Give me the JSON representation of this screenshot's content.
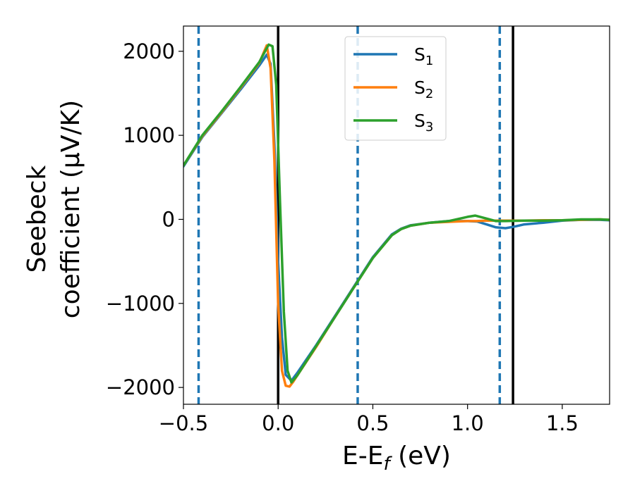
{
  "chart_data": {
    "type": "line",
    "xlabel": {
      "main": "E-E",
      "sub": "f",
      "unit": " (eV)"
    },
    "ylabel": {
      "line1": "Seebeck",
      "line2": "coefficient  (μV/K)"
    },
    "xlim": [
      -0.5,
      1.75
    ],
    "ylim": [
      -2200,
      2300
    ],
    "xticks": [
      {
        "value": -0.5,
        "label": "−0.5"
      },
      {
        "value": 0.0,
        "label": "0.0"
      },
      {
        "value": 0.5,
        "label": "0.5"
      },
      {
        "value": 1.0,
        "label": "1.0"
      },
      {
        "value": 1.5,
        "label": "1.5"
      }
    ],
    "yticks": [
      {
        "value": 2000,
        "label": "2000"
      },
      {
        "value": 1000,
        "label": "1000"
      },
      {
        "value": 0,
        "label": "0"
      },
      {
        "value": -1000,
        "label": "−1000"
      },
      {
        "value": -2000,
        "label": "−2000"
      }
    ],
    "grid": false,
    "legend_position": "top-center",
    "vlines_dashed": {
      "color": "#1f77b4",
      "x": [
        -0.42,
        0.42,
        1.17
      ]
    },
    "vlines_solid": {
      "color": "#000000",
      "x": [
        0.0,
        1.24
      ]
    },
    "series": [
      {
        "name": "S",
        "sub": "1",
        "color": "#1f77b4",
        "x": [
          -0.5,
          -0.4,
          -0.3,
          -0.2,
          -0.1,
          -0.06,
          -0.04,
          -0.02,
          0.0,
          0.02,
          0.04,
          0.07,
          0.1,
          0.2,
          0.3,
          0.4,
          0.5,
          0.6,
          0.65,
          0.7,
          0.8,
          0.9,
          1.0,
          1.05,
          1.1,
          1.15,
          1.2,
          1.24,
          1.3,
          1.4,
          1.5,
          1.6,
          1.7,
          1.75
        ],
        "y": [
          630,
          980,
          1260,
          1540,
          1830,
          1960,
          1850,
          900,
          -500,
          -1400,
          -1850,
          -1920,
          -1830,
          -1500,
          -1150,
          -800,
          -450,
          -180,
          -110,
          -70,
          -40,
          -20,
          -20,
          -25,
          -60,
          -95,
          -105,
          -90,
          -60,
          -40,
          -15,
          -5,
          -5,
          -10
        ]
      },
      {
        "name": "S",
        "sub": "2",
        "color": "#ff7f0e",
        "x": [
          -0.5,
          -0.4,
          -0.3,
          -0.2,
          -0.1,
          -0.06,
          -0.04,
          -0.02,
          0.0,
          0.02,
          0.04,
          0.06,
          0.08,
          0.1,
          0.2,
          0.3,
          0.4,
          0.5,
          0.6,
          0.65,
          0.7,
          0.8,
          0.9,
          1.0,
          1.05,
          1.1,
          1.2,
          1.3,
          1.4,
          1.5,
          1.6,
          1.7,
          1.75
        ],
        "y": [
          640,
          990,
          1270,
          1560,
          1860,
          2070,
          1800,
          700,
          -1000,
          -1800,
          -1980,
          -1990,
          -1930,
          -1860,
          -1520,
          -1160,
          -810,
          -460,
          -190,
          -115,
          -75,
          -40,
          -30,
          -20,
          -20,
          -15,
          -15,
          -15,
          -10,
          -10,
          -5,
          0,
          -5
        ]
      },
      {
        "name": "S",
        "sub": "3",
        "color": "#2ca02c",
        "x": [
          -0.5,
          -0.4,
          -0.3,
          -0.2,
          -0.1,
          -0.05,
          -0.03,
          -0.01,
          0.01,
          0.03,
          0.05,
          0.07,
          0.1,
          0.2,
          0.3,
          0.4,
          0.5,
          0.6,
          0.65,
          0.7,
          0.8,
          0.9,
          1.0,
          1.04,
          1.1,
          1.15,
          1.2,
          1.3,
          1.4,
          1.5,
          1.6,
          1.7,
          1.75
        ],
        "y": [
          640,
          1000,
          1280,
          1570,
          1870,
          2080,
          2060,
          1600,
          200,
          -1100,
          -1800,
          -1940,
          -1860,
          -1510,
          -1160,
          -810,
          -460,
          -190,
          -115,
          -75,
          -40,
          -20,
          30,
          45,
          10,
          -20,
          -20,
          -15,
          -15,
          -10,
          0,
          0,
          -5
        ]
      }
    ]
  }
}
